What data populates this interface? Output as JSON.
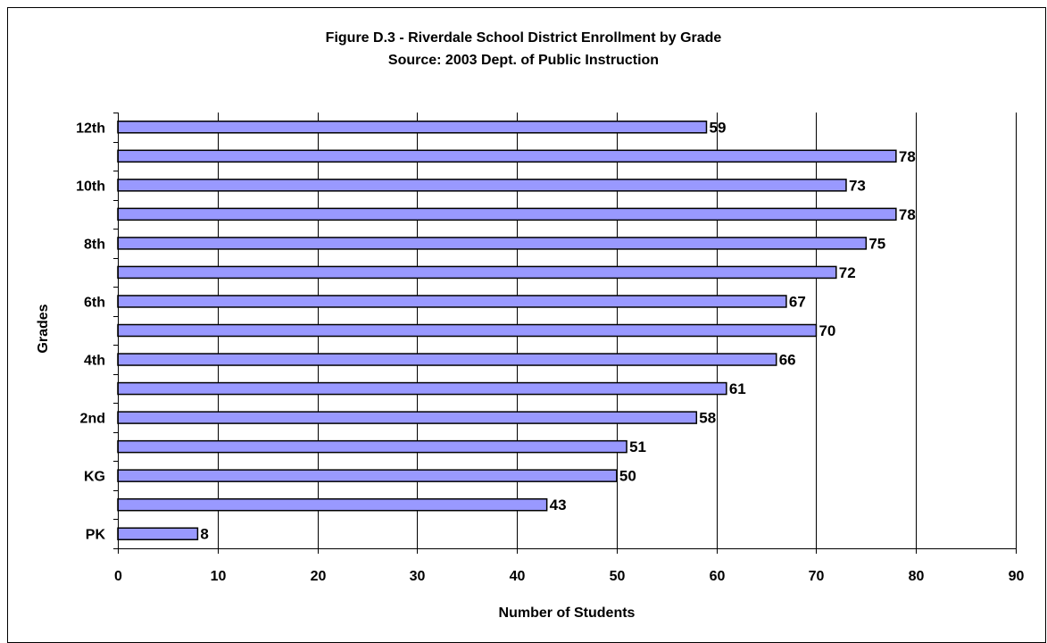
{
  "chart_data": {
    "type": "bar",
    "orientation": "horizontal",
    "title": "Figure D.3 - Riverdale School District Enrollment by Grade",
    "subtitle": "Source:  2003 Dept. of Public Instruction",
    "xlabel": "Number of Students",
    "ylabel": "Grades",
    "categories": [
      "PK",
      "",
      "KG",
      "",
      "2nd",
      "",
      "4th",
      "",
      "6th",
      "",
      "8th",
      "",
      "10th",
      "",
      "12th"
    ],
    "values": [
      8,
      43,
      50,
      51,
      58,
      61,
      66,
      70,
      67,
      72,
      75,
      78,
      73,
      78,
      59
    ],
    "xlim": [
      0,
      90
    ],
    "xticks": [
      0,
      10,
      20,
      30,
      40,
      50,
      60,
      70,
      80,
      90
    ],
    "grid": "vertical",
    "legend": "none",
    "colors": {
      "bar_fill": "#9999ff",
      "bar_stroke": "#000000",
      "grid": "#000000"
    }
  }
}
